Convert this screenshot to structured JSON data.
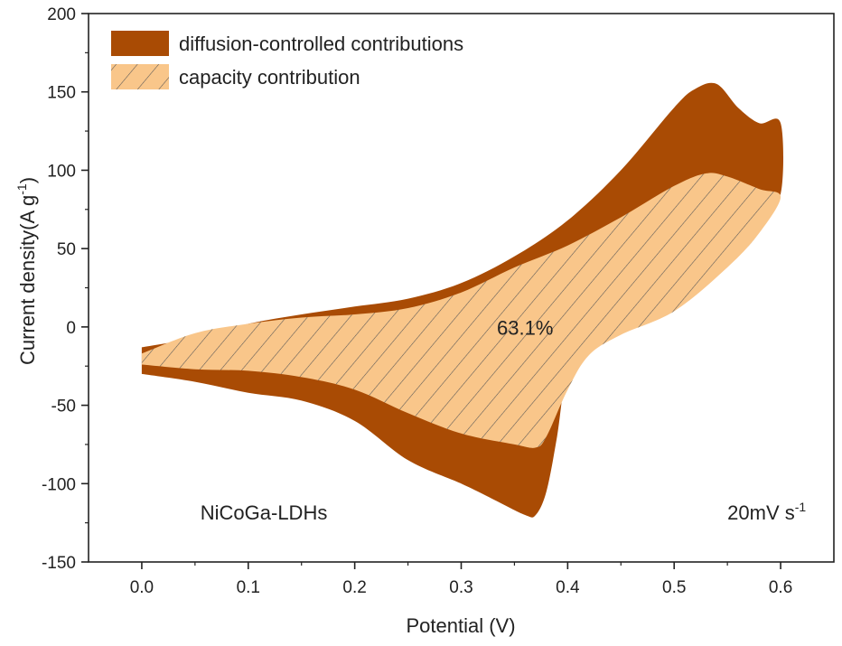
{
  "chart_data": {
    "type": "area",
    "xlabel": "Potential (V)",
    "ylabel_main": "Current density(A g",
    "ylabel_sup": "-1",
    "ylabel_close": ")",
    "xlim": [
      -0.05,
      0.65
    ],
    "ylim": [
      -150,
      200
    ],
    "xticks": [
      0.0,
      0.1,
      0.2,
      0.3,
      0.4,
      0.5,
      0.6
    ],
    "xtick_labels": [
      "0.0",
      "0.1",
      "0.2",
      "0.3",
      "0.4",
      "0.5",
      "0.6"
    ],
    "yticks": [
      -150,
      -100,
      -50,
      0,
      50,
      100,
      150,
      200
    ],
    "ytick_labels": [
      "-150",
      "-100",
      "-50",
      "0",
      "50",
      "100",
      "150",
      "200"
    ],
    "legend_position": "top-left",
    "series": [
      {
        "name": "diffusion-controlled contributions",
        "color": "#a94b04",
        "style": "solid",
        "upper": [
          [
            0.0,
            -13
          ],
          [
            0.05,
            -7
          ],
          [
            0.1,
            2
          ],
          [
            0.15,
            8
          ],
          [
            0.2,
            13
          ],
          [
            0.25,
            18
          ],
          [
            0.3,
            28
          ],
          [
            0.35,
            45
          ],
          [
            0.4,
            68
          ],
          [
            0.45,
            100
          ],
          [
            0.5,
            140
          ],
          [
            0.52,
            152
          ],
          [
            0.54,
            155
          ],
          [
            0.56,
            140
          ],
          [
            0.58,
            130
          ],
          [
            0.6,
            130
          ],
          [
            0.6,
            85
          ]
        ],
        "lower": [
          [
            0.6,
            85
          ],
          [
            0.58,
            75
          ],
          [
            0.55,
            62
          ],
          [
            0.5,
            45
          ],
          [
            0.45,
            28
          ],
          [
            0.42,
            10
          ],
          [
            0.4,
            -25
          ],
          [
            0.39,
            -70
          ],
          [
            0.38,
            -105
          ],
          [
            0.37,
            -120
          ],
          [
            0.36,
            -120
          ],
          [
            0.33,
            -110
          ],
          [
            0.3,
            -100
          ],
          [
            0.25,
            -85
          ],
          [
            0.2,
            -60
          ],
          [
            0.15,
            -47
          ],
          [
            0.1,
            -42
          ],
          [
            0.05,
            -35
          ],
          [
            0.0,
            -30
          ]
        ]
      },
      {
        "name": "capacity contribution",
        "color": "#f9c68a",
        "style": "hatched",
        "upper": [
          [
            0.0,
            -17
          ],
          [
            0.05,
            -4
          ],
          [
            0.1,
            2
          ],
          [
            0.15,
            6
          ],
          [
            0.2,
            8
          ],
          [
            0.25,
            12
          ],
          [
            0.3,
            22
          ],
          [
            0.35,
            38
          ],
          [
            0.4,
            52
          ],
          [
            0.45,
            70
          ],
          [
            0.5,
            90
          ],
          [
            0.53,
            98
          ],
          [
            0.55,
            96
          ],
          [
            0.58,
            88
          ],
          [
            0.6,
            83
          ]
        ],
        "lower": [
          [
            0.6,
            83
          ],
          [
            0.58,
            60
          ],
          [
            0.55,
            38
          ],
          [
            0.5,
            10
          ],
          [
            0.45,
            -5
          ],
          [
            0.42,
            -18
          ],
          [
            0.4,
            -40
          ],
          [
            0.38,
            -70
          ],
          [
            0.37,
            -77
          ],
          [
            0.35,
            -75
          ],
          [
            0.3,
            -68
          ],
          [
            0.25,
            -55
          ],
          [
            0.2,
            -40
          ],
          [
            0.15,
            -32
          ],
          [
            0.1,
            -28
          ],
          [
            0.05,
            -27
          ],
          [
            0.0,
            -24
          ]
        ]
      }
    ],
    "annotations": [
      {
        "text": "63.1%",
        "x": 0.36,
        "y": -5
      },
      {
        "text": "NiCoGa-LDHs",
        "x": 0.055,
        "y": -123
      },
      {
        "text_main": "20mV s",
        "text_sup": "-1",
        "x": 0.55,
        "y": -123
      }
    ]
  }
}
